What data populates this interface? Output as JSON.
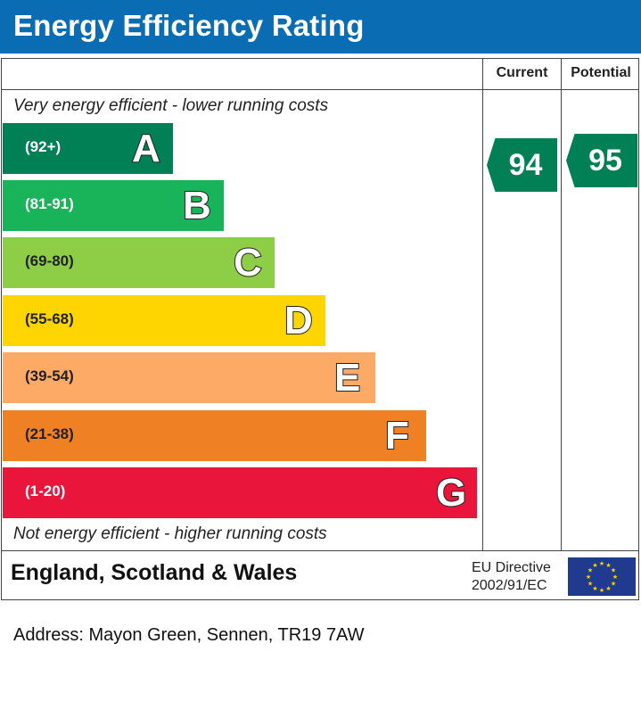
{
  "header": {
    "title": "Energy Efficiency Rating"
  },
  "columns": {
    "current": "Current",
    "potential": "Potential"
  },
  "captions": {
    "top": "Very energy efficient - lower running costs",
    "bottom": "Not energy efficient - higher running costs"
  },
  "chart_data": {
    "type": "bar",
    "categories": [
      "A",
      "B",
      "C",
      "D",
      "E",
      "F",
      "G"
    ],
    "ranges": [
      "(92+)",
      "(81-91)",
      "(69-80)",
      "(55-68)",
      "(39-54)",
      "(21-38)",
      "(1-20)"
    ],
    "colors": [
      "#008054",
      "#19b459",
      "#8dce46",
      "#ffd500",
      "#fcaa65",
      "#ef8023",
      "#e9153b"
    ],
    "current": {
      "value": "94",
      "band": "A",
      "color": "#008054"
    },
    "potential": {
      "value": "95",
      "band": "A",
      "color": "#008054"
    }
  },
  "footer": {
    "region": "England, Scotland & Wales",
    "eu_line1": "EU Directive",
    "eu_line2": "2002/91/EC",
    "flag_icon": "eu-flag-icon"
  },
  "address": "Address: Mayon Green, Sennen, TR19 7AW"
}
